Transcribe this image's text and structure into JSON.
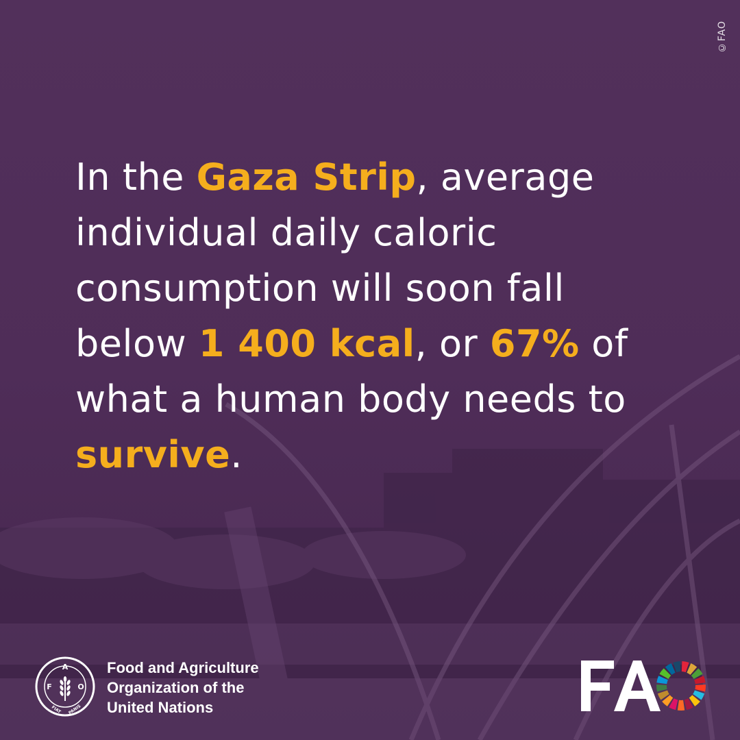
{
  "photo_credit": "©FAO",
  "headline": {
    "segments": [
      {
        "text": "In the ",
        "highlight": false
      },
      {
        "text": "Gaza Strip",
        "highlight": true
      },
      {
        "text": ", average individual daily caloric consumption will soon fall below ",
        "highlight": false
      },
      {
        "text": "1 400 kcal",
        "highlight": true
      },
      {
        "text": ", or ",
        "highlight": false
      },
      {
        "text": "67%",
        "highlight": true
      },
      {
        "text": " of what a human body needs to ",
        "highlight": false
      },
      {
        "text": "survive",
        "highlight": true
      },
      {
        "text": ".",
        "highlight": false
      }
    ]
  },
  "footer": {
    "org_name_lines": [
      "Food and Agriculture",
      "Organization of the",
      "United Nations"
    ],
    "emblem_icon": "fao-emblem-icon",
    "wordmark_icon": "fao-sdg-wordmark-icon"
  },
  "colors": {
    "background": "#4f2d58",
    "text": "#ffffff",
    "highlight": "#f5ae1d"
  }
}
